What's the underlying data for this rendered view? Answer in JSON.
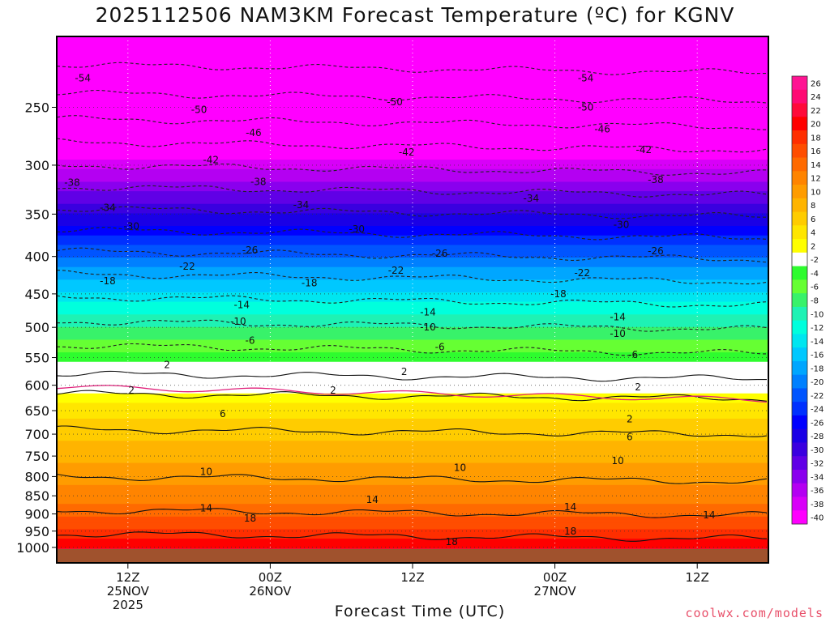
{
  "chart_data": {
    "type": "heatmap",
    "title": "2025112506 NAM3KM Forecast Temperature (ºC) for KGNV",
    "xlabel": "Forecast Time (UTC)",
    "ylabel": "",
    "y_log_scale": true,
    "ylim": [
      1050,
      200
    ],
    "x_range_hours": [
      0,
      60
    ],
    "yticks": [
      250,
      300,
      350,
      400,
      450,
      500,
      550,
      600,
      650,
      700,
      750,
      800,
      850,
      900,
      950,
      1000
    ],
    "xticks": [
      {
        "hour": 6,
        "lines": [
          "12Z",
          "25NOV",
          "2025"
        ]
      },
      {
        "hour": 18,
        "lines": [
          "00Z",
          "26NOV"
        ]
      },
      {
        "hour": 30,
        "lines": [
          "12Z"
        ]
      },
      {
        "hour": 42,
        "lines": [
          "00Z",
          "27NOV"
        ]
      },
      {
        "hour": 54,
        "lines": [
          "12Z"
        ]
      }
    ],
    "profile_pressure": [
      1000,
      975,
      950,
      925,
      900,
      850,
      800,
      750,
      700,
      650,
      600,
      550,
      500,
      450,
      400,
      350,
      300,
      250,
      200
    ],
    "profile_temperature": [
      21,
      19,
      17.5,
      16,
      14.5,
      12,
      10,
      8.5,
      6.5,
      4,
      1,
      -4,
      -9,
      -14.5,
      -21,
      -29,
      -38,
      -48,
      -58
    ],
    "contour_levels": [
      -54,
      -50,
      -46,
      -42,
      -38,
      -34,
      -30,
      -26,
      -22,
      -18,
      -14,
      -10,
      -6,
      2,
      2,
      6,
      10,
      14,
      18
    ],
    "contour_line_labels": [
      {
        "label": "-54",
        "hour": 2.2,
        "p": 228
      },
      {
        "label": "-54",
        "hour": 44.6,
        "p": 228
      },
      {
        "label": "-50",
        "hour": 12,
        "p": 252
      },
      {
        "label": "-50",
        "hour": 28.5,
        "p": 246
      },
      {
        "label": "-50",
        "hour": 44.6,
        "p": 250
      },
      {
        "label": "-46",
        "hour": 16.6,
        "p": 271
      },
      {
        "label": "-46",
        "hour": 46,
        "p": 268
      },
      {
        "label": "-42",
        "hour": 13,
        "p": 295
      },
      {
        "label": "-42",
        "hour": 29.5,
        "p": 288
      },
      {
        "label": "-42",
        "hour": 49.5,
        "p": 286
      },
      {
        "label": "-38",
        "hour": 1.3,
        "p": 317
      },
      {
        "label": "-38",
        "hour": 17,
        "p": 316
      },
      {
        "label": "-38",
        "hour": 50.5,
        "p": 314
      },
      {
        "label": "-34",
        "hour": 4.3,
        "p": 343
      },
      {
        "label": "-34",
        "hour": 20.6,
        "p": 340
      },
      {
        "label": "-34",
        "hour": 40,
        "p": 333
      },
      {
        "label": "-30",
        "hour": 6.3,
        "p": 364
      },
      {
        "label": "-30",
        "hour": 25.3,
        "p": 367
      },
      {
        "label": "-30",
        "hour": 47.6,
        "p": 362
      },
      {
        "label": "-26",
        "hour": 16.3,
        "p": 392
      },
      {
        "label": "-26",
        "hour": 32.3,
        "p": 396
      },
      {
        "label": "-26",
        "hour": 50.5,
        "p": 393
      },
      {
        "label": "-22",
        "hour": 11,
        "p": 413
      },
      {
        "label": "-22",
        "hour": 28.6,
        "p": 418
      },
      {
        "label": "-22",
        "hour": 44.3,
        "p": 421
      },
      {
        "label": "-18",
        "hour": 4.3,
        "p": 432
      },
      {
        "label": "-18",
        "hour": 21.3,
        "p": 435
      },
      {
        "label": "-18",
        "hour": 42.3,
        "p": 450
      },
      {
        "label": "-14",
        "hour": 15.6,
        "p": 466
      },
      {
        "label": "-14",
        "hour": 31.3,
        "p": 477
      },
      {
        "label": "-14",
        "hour": 47.3,
        "p": 484
      },
      {
        "label": "-10",
        "hour": 15.3,
        "p": 491
      },
      {
        "label": "-10",
        "hour": 31.3,
        "p": 500
      },
      {
        "label": "-10",
        "hour": 47.3,
        "p": 510
      },
      {
        "label": "-6",
        "hour": 16.3,
        "p": 521
      },
      {
        "label": "-6",
        "hour": 32.3,
        "p": 532
      },
      {
        "label": "-6",
        "hour": 48.6,
        "p": 545
      },
      {
        "label": "2",
        "hour": 9.3,
        "p": 563
      },
      {
        "label": "2",
        "hour": 29.3,
        "p": 575
      },
      {
        "label": "2",
        "hour": 49,
        "p": 604
      },
      {
        "label": "2",
        "hour": 6.3,
        "p": 610
      },
      {
        "label": "2",
        "hour": 23.3,
        "p": 610
      },
      {
        "label": "2",
        "hour": 48.3,
        "p": 668
      },
      {
        "label": "6",
        "hour": 14,
        "p": 657
      },
      {
        "label": "6",
        "hour": 48.3,
        "p": 706
      },
      {
        "label": "10",
        "hour": 12.6,
        "p": 788
      },
      {
        "label": "10",
        "hour": 34,
        "p": 778
      },
      {
        "label": "10",
        "hour": 47.3,
        "p": 761
      },
      {
        "label": "14",
        "hour": 12.6,
        "p": 884
      },
      {
        "label": "14",
        "hour": 26.6,
        "p": 860
      },
      {
        "label": "14",
        "hour": 43.3,
        "p": 880
      },
      {
        "label": "14",
        "hour": 55,
        "p": 903
      },
      {
        "label": "18",
        "hour": 16.3,
        "p": 912
      },
      {
        "label": "18",
        "hour": 33.3,
        "p": 983
      },
      {
        "label": "18",
        "hour": 43.3,
        "p": 950
      }
    ],
    "colorbar": {
      "labels": [
        "26",
        "24",
        "22",
        "20",
        "18",
        "16",
        "14",
        "12",
        "10",
        "8",
        "6",
        "4",
        "2",
        "-2",
        "-4",
        "-6",
        "-8",
        "-10",
        "-12",
        "-14",
        "-16",
        "-18",
        "-20",
        "-22",
        "-24",
        "-26",
        "-28",
        "-30",
        "-32",
        "-34",
        "-36",
        "-38",
        "-40"
      ],
      "colors": [
        "#ff1493",
        "#ff0a73",
        "#ff0a3a",
        "#ff0000",
        "#ff2e00",
        "#ff4d00",
        "#ff6a00",
        "#ff8400",
        "#ff9c00",
        "#ffb400",
        "#ffcc00",
        "#ffe600",
        "#ffff00",
        "#ffffff",
        "#2efc2e",
        "#66ff33",
        "#38f26a",
        "#1ef2b4",
        "#00ffdd",
        "#00e6f0",
        "#00c8ff",
        "#00a6ff",
        "#0080ff",
        "#0055ff",
        "#0030ff",
        "#0000ff",
        "#1a00e6",
        "#3a00e0",
        "#6000e6",
        "#8a00ee",
        "#b400f2",
        "#d800f8",
        "#ff00ff"
      ]
    },
    "ground_color": "#a0522d",
    "pressure_grid_lines": true,
    "time_grid_lines": true
  },
  "credit": "coolwx.com/models"
}
